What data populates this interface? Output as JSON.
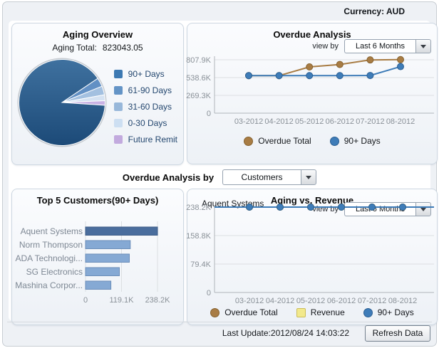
{
  "header": {
    "currency_label": "Currency: AUD"
  },
  "selector": {
    "label": "Overdue Analysis by",
    "value": "Customers"
  },
  "footer": {
    "last_update": "Last Update:2012/08/24 14:03:22",
    "refresh_button": "Refresh Data"
  },
  "colors": {
    "overdue_total": "#a87c44",
    "overdue_total_edge": "#86622f",
    "ninety_plus": "#3e7cb8",
    "ninety_plus_edge": "#2b5f93",
    "revenue": "#f2e98c",
    "revenue_edge": "#cbbd58",
    "bar": "#85a9d4",
    "bar_edge": "#6a8db9",
    "bar_selected": "#4a6d9d",
    "bar_selected_edge": "#3c5b86",
    "grid": "#dcdfe2",
    "axis": "#b0b5ba"
  },
  "chart_data": [
    {
      "type": "pie",
      "title": "Aging Overview",
      "total_label": "Aging Total:",
      "total_value": "823043.05",
      "start_angle_deg": -34,
      "slices": [
        {
          "label": "61-90 Days",
          "pct": 3.3,
          "color": "#6290c4"
        },
        {
          "label": "31-60 Days",
          "pct": 3.3,
          "color": "#a3c0e0"
        },
        {
          "label": "0-30 Days",
          "pct": 2.2,
          "color": "#d5e2f2"
        },
        {
          "label": "Future Remit",
          "pct": 1.7,
          "color": "#c9b2e4"
        },
        {
          "label": "90+ Days",
          "pct": 89.5,
          "color": "#1c4a78",
          "color_top": "#3f719f"
        }
      ],
      "legend": [
        {
          "label": "90+ Days",
          "color": "#3d79b2"
        },
        {
          "label": "61-90 Days",
          "color": "#6494c6"
        },
        {
          "label": "31-60 Days",
          "color": "#98b8da"
        },
        {
          "label": "0-30 Days",
          "color": "#cddff2"
        },
        {
          "label": "Future Remit",
          "color": "#c2aade"
        }
      ]
    },
    {
      "type": "line",
      "title": "Overdue Analysis",
      "view_by_label": "view by",
      "view_by_value": "Last 6 Months",
      "x": [
        "03-2012",
        "04-2012",
        "05-2012",
        "06-2012",
        "07-2012",
        "08-2012"
      ],
      "unit": "K",
      "yticks": [
        {
          "v": 0,
          "label": "0"
        },
        {
          "v": 269.3,
          "label": "269.3K"
        },
        {
          "v": 538.6,
          "label": "538.6K"
        },
        {
          "v": 807.9,
          "label": "807.9K"
        }
      ],
      "series": [
        {
          "name": "Overdue Total",
          "shape": "circle",
          "color": "#a87c44",
          "edge": "#86622f",
          "values": [
            568,
            568,
            700,
            737,
            806,
            810
          ]
        },
        {
          "name": "90+ Days",
          "shape": "circle",
          "color": "#3e7cb8",
          "edge": "#2b5f93",
          "values": [
            568,
            568,
            568,
            568,
            570,
            705
          ]
        }
      ]
    },
    {
      "type": "bar",
      "title": "Top 5 Customers(90+ Days)",
      "unit": "K",
      "categories": [
        "Aquent Systems",
        "Norm Thompson",
        "ADA Technologi...",
        "SG Electronics",
        "Mashina Corpor..."
      ],
      "values": [
        238.2,
        148,
        145,
        112,
        84
      ],
      "selected_index": 0,
      "xticks": [
        {
          "v": 0,
          "label": "0"
        },
        {
          "v": 119.1,
          "label": "119.1K"
        },
        {
          "v": 238.2,
          "label": "238.2K"
        }
      ]
    },
    {
      "type": "line",
      "title": "Aging vs. Revenue",
      "subtitle": "Aquent Systems",
      "view_by_label": "view by",
      "view_by_value": "Last 6 Months",
      "x": [
        "03-2012",
        "04-2012",
        "05-2012",
        "06-2012",
        "07-2012",
        "08-2012"
      ],
      "unit": "K",
      "yticks": [
        {
          "v": 0,
          "label": "0"
        },
        {
          "v": 79.4,
          "label": "79.4K"
        },
        {
          "v": 158.8,
          "label": "158.8K"
        },
        {
          "v": 238.2,
          "label": "238.2K"
        }
      ],
      "series": [
        {
          "name": "Overdue Total",
          "shape": "circle",
          "color": "#a87c44",
          "edge": "#86622f",
          "values": [
            238.2,
            238.2,
            238.2,
            238.2,
            238.2,
            238.2
          ]
        },
        {
          "name": "Revenue",
          "shape": "square",
          "color": "#f2e98c",
          "edge": "#cbbd58",
          "values": [
            238.2,
            238.2,
            238.2,
            238.2,
            238.2,
            238.2
          ]
        },
        {
          "name": "90+ Days",
          "shape": "circle",
          "color": "#3e7cb8",
          "edge": "#2b5f93",
          "values": [
            238.2,
            238.2,
            238.2,
            238.2,
            238.2,
            238.2
          ]
        }
      ]
    }
  ]
}
